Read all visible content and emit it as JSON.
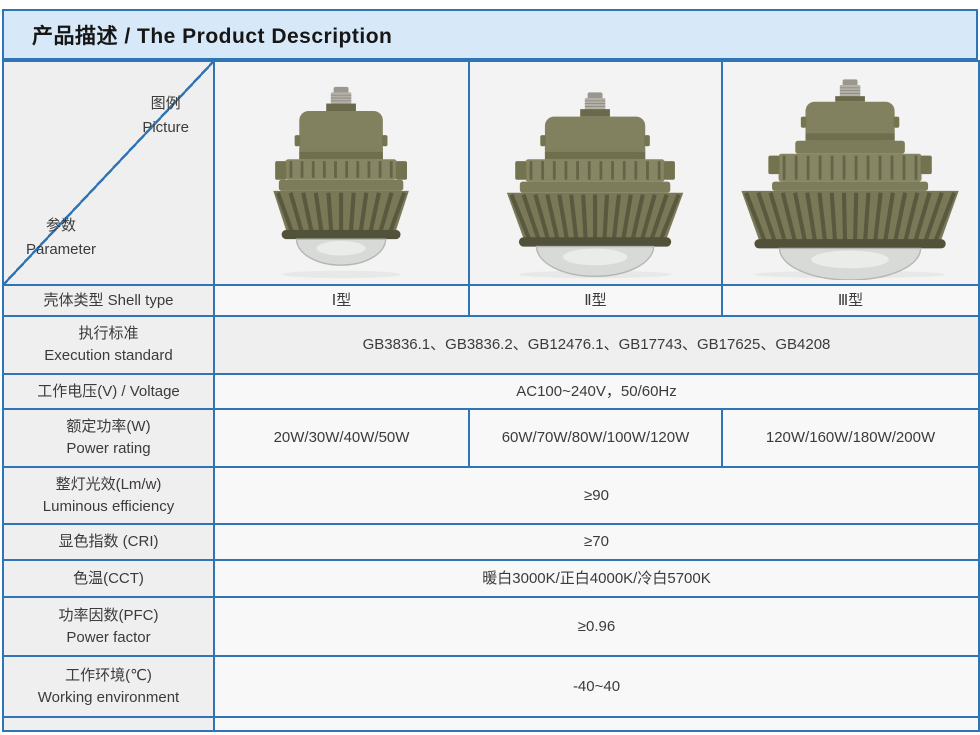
{
  "header": {
    "title": "产品描述 / The Product Description"
  },
  "colors": {
    "table_border": "#2f74b5",
    "header_bg": "#d7e9f8",
    "label_cell_bg": "#eeefee",
    "value_cell_bg": "#f7f8f7",
    "lamp_body": "#81805f",
    "lamp_dome": "#d8dad7"
  },
  "corner": {
    "picture_cn": "图例",
    "picture_en": "Picture",
    "parameter_cn": "参数",
    "parameter_en": "Parameter"
  },
  "pictures": [
    {
      "name": "shell-type-1-lamp-photo"
    },
    {
      "name": "shell-type-2-lamp-photo"
    },
    {
      "name": "shell-type-3-lamp-photo"
    }
  ],
  "rows": {
    "shell_type": {
      "label": "壳体类型  Shell type",
      "values": [
        "Ⅰ型",
        "Ⅱ型",
        "Ⅲ型"
      ]
    },
    "execution_standard": {
      "label_cn": "执行标准",
      "label_en": "Execution standard",
      "value": "GB3836.1、GB3836.2、GB12476.1、GB17743、GB17625、GB4208"
    },
    "voltage": {
      "label": "工作电压(V) / Voltage",
      "value": "AC100~240V，50/60Hz"
    },
    "power_rating": {
      "label_cn": "额定功率(W)",
      "label_en": "Power rating",
      "values": [
        "20W/30W/40W/50W",
        "60W/70W/80W/100W/120W",
        "120W/160W/180W/200W"
      ]
    },
    "luminous_efficiency": {
      "label_cn": "整灯光效(Lm/w)",
      "label_en": "Luminous efficiency",
      "value": "≥90"
    },
    "cri": {
      "label": "显色指数 (CRI)",
      "value": "≥70"
    },
    "cct": {
      "label": "色温(CCT)",
      "value": "暖白3000K/正白4000K/冷白5700K"
    },
    "power_factor": {
      "label_cn": "功率因数(PFC)",
      "label_en": "Power factor",
      "value": "≥0.96"
    },
    "working_environment": {
      "label_cn": "工作环境(℃)",
      "label_en": "Working environment",
      "value": "-40~40"
    }
  }
}
